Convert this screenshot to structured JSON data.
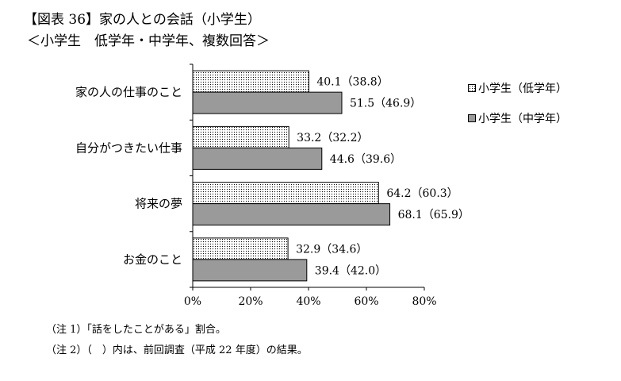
{
  "title": "【図表 36】家の人との会話（小学生）",
  "subtitle": "＜小学生　低学年・中学年、複数回答＞",
  "notes": [
    "（注 1）「話をしたことがある」割合。",
    "（注 2）（　）内は、前回調査（平成 22 年度）の結果。"
  ],
  "chart_data": {
    "type": "bar",
    "orientation": "horizontal",
    "categories": [
      "家の人の仕事のこと",
      "自分がつきたい仕事",
      "将来の夢",
      "お金のこと"
    ],
    "series": [
      {
        "name": "小学生（低学年）",
        "values": [
          40.1,
          33.2,
          64.2,
          32.9
        ],
        "previous": [
          38.8,
          32.2,
          60.3,
          34.6
        ],
        "labels": [
          "40.1（38.8）",
          "33.2（32.2）",
          "64.2（60.3）",
          "32.9（34.6）"
        ],
        "fill": "dotted"
      },
      {
        "name": "小学生（中学年）",
        "values": [
          51.5,
          44.6,
          68.1,
          39.4
        ],
        "previous": [
          46.9,
          39.6,
          65.9,
          42.0
        ],
        "labels": [
          "51.5（46.9）",
          "44.6（39.6）",
          "68.1（65.9）",
          "39.4（42.0）"
        ],
        "fill": "#9a9a9a"
      }
    ],
    "xlim": [
      0,
      80
    ],
    "xticks": [
      "0%",
      "20%",
      "40%",
      "60%",
      "80%"
    ],
    "grid": false,
    "legend_position": "right"
  }
}
